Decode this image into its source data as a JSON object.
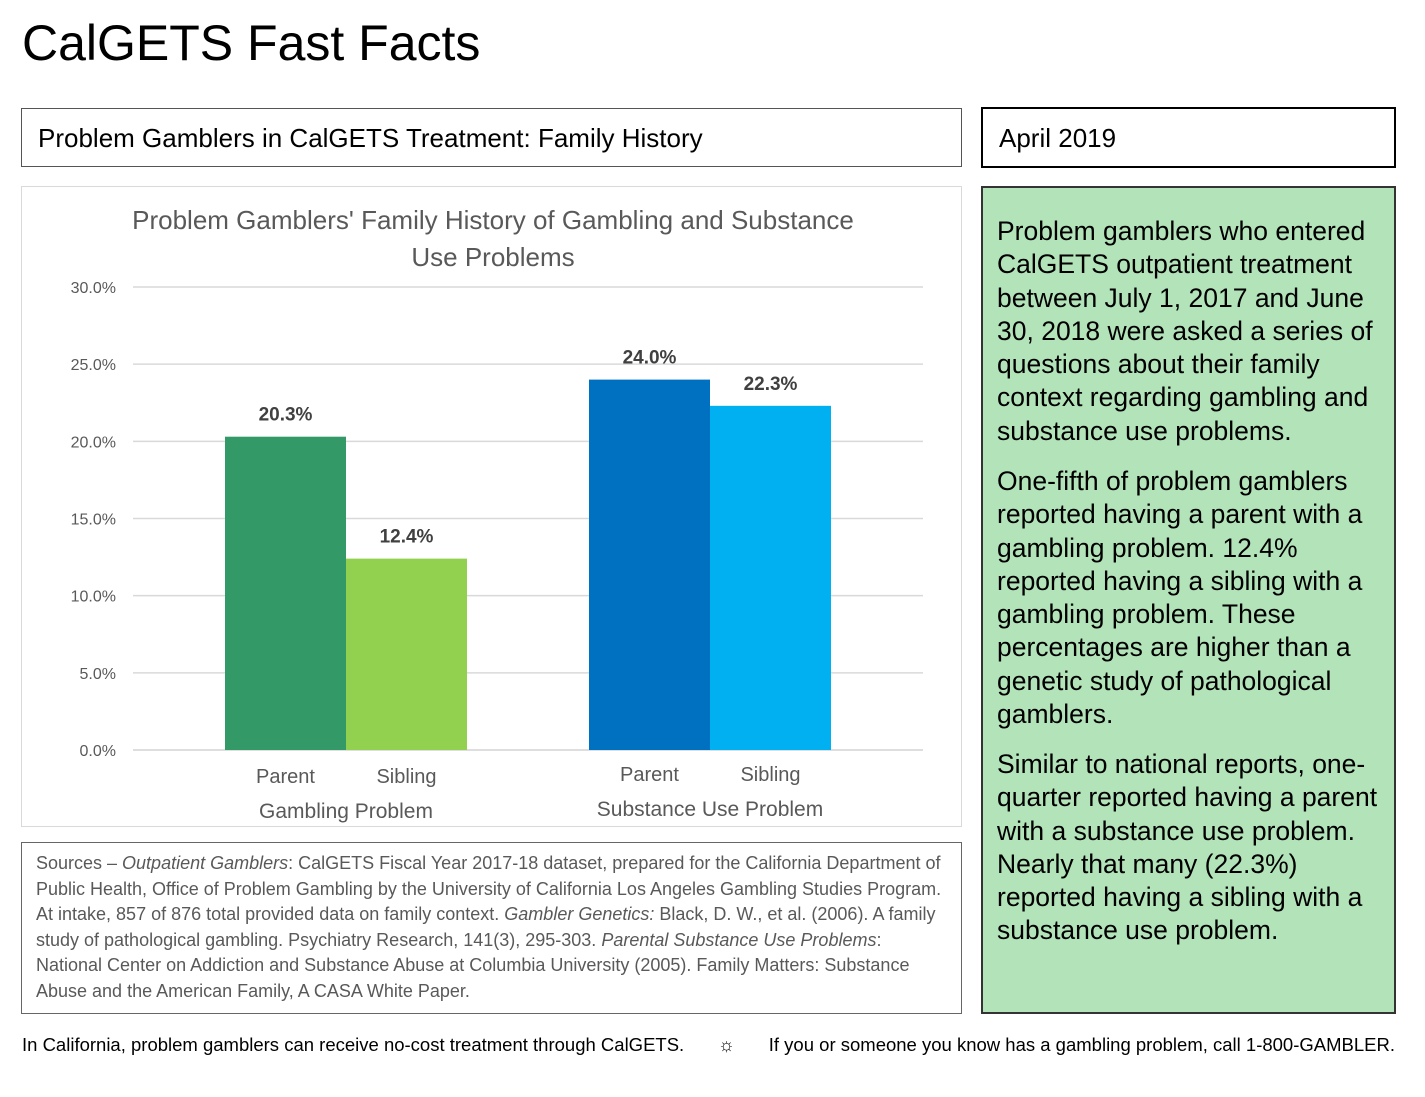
{
  "page": {
    "title": "CalGETS Fast Facts",
    "subtitle": "Problem Gamblers in CalGETS Treatment: Family History",
    "date": "April 2019"
  },
  "chart_data": {
    "type": "bar",
    "title": "Problem Gamblers' Family History of Gambling and Substance Use Problems",
    "title_lines": [
      "Problem Gamblers' Family History of Gambling and Substance",
      "Use Problems"
    ],
    "ylim": [
      0,
      30
    ],
    "yticks": [
      "0.0%",
      "5.0%",
      "10.0%",
      "15.0%",
      "20.0%",
      "25.0%",
      "30.0%"
    ],
    "grid": true,
    "groups": [
      {
        "name": "Gambling Problem",
        "bars": [
          {
            "name": "Parent",
            "value": 20.3,
            "label": "20.3%",
            "color": "#339966"
          },
          {
            "name": "Sibling",
            "value": 12.4,
            "label": "12.4%",
            "color": "#92d050"
          }
        ]
      },
      {
        "name": "Substance Use Problem",
        "bars": [
          {
            "name": "Parent",
            "value": 24.0,
            "label": "24.0%",
            "color": "#0070c0"
          },
          {
            "name": "Sibling",
            "value": 22.3,
            "label": "22.3%",
            "color": "#00b0f0"
          }
        ]
      }
    ]
  },
  "summary": {
    "p1": "Problem gamblers who entered CalGETS outpatient treatment between July 1, 2017 and June 30, 2018 were asked a series of questions about their family context regarding gambling and substance use problems.",
    "p2": "One-fifth of problem gamblers reported having a parent with a gambling problem. 12.4% reported having a sibling with a gambling problem. These percentages are higher than a genetic study of pathological gamblers.",
    "p3": "Similar to national reports, one-quarter reported having a parent with a substance use problem. Nearly that many (22.3%) reported having a sibling with a substance use problem."
  },
  "sources": {
    "lead": "Sources – ",
    "s1_title": "Outpatient Gamblers",
    "s1_text": ": CalGETS Fiscal Year 2017-18 dataset, prepared for the California Department of Public Health, Office of Problem Gambling by the University of California Los Angeles Gambling Studies Program. At intake, 857 of 876 total provided data on family context. ",
    "s2_title": "Gambler Genetics:",
    "s2_text": " Black, D. W., et al. (2006). A family study of pathological gambling. Psychiatry Research, 141(3), 295-303. ",
    "s3_title": "Parental Substance Use Problems",
    "s3_text": ": National Center on Addiction and Substance Abuse at Columbia University (2005). Family Matters: Substance Abuse and the American Family, A CASA White Paper."
  },
  "footer": {
    "left": "In California, problem gamblers can receive no-cost treatment through CalGETS.",
    "separator": "☼",
    "right": "If you or someone you know has a gambling problem, call 1-800-GAMBLER."
  }
}
